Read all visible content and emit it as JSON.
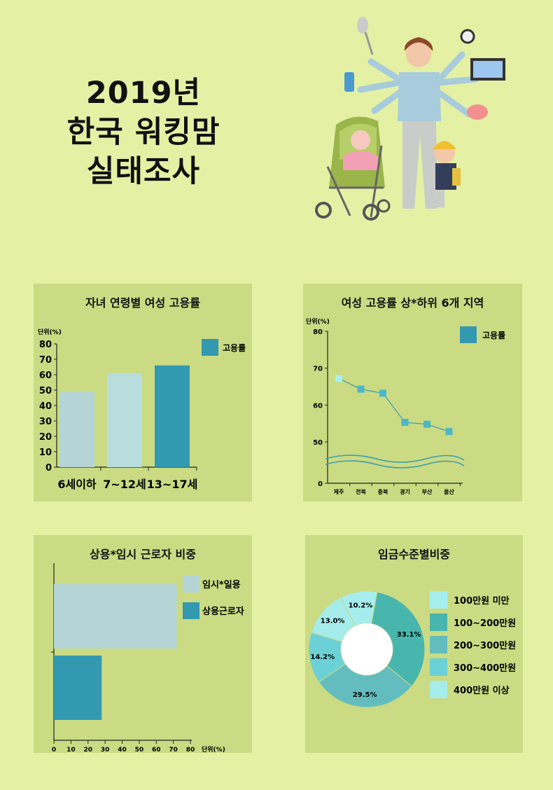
{
  "header": {
    "title_line1": "2019년",
    "title_line2": "한국 워킹맘",
    "title_line3": "실태조사"
  },
  "colors": {
    "background": "#e4f0a4",
    "panel": "#cadb83",
    "teal": "#3399b0",
    "light_blue": "#b5d4d6",
    "pale_blue": "#b9dcdc"
  },
  "illustration": {
    "name": "working-mom-multitasking-icon"
  },
  "charts": [
    {
      "type": "bar",
      "title": "자녀 연령별 여성 고용률",
      "unit_label": "단위(%)",
      "categories": [
        "6세이하",
        "7~12세",
        "13~17세"
      ],
      "values": [
        49,
        61,
        66
      ],
      "colors": [
        "#b5d4d6",
        "#b9dcdc",
        "#3399b0"
      ],
      "yticks": [
        0,
        10,
        20,
        30,
        40,
        50,
        60,
        70,
        80
      ],
      "ylim": [
        0,
        80
      ],
      "legend": [
        "고용률"
      ],
      "legend_position": "top-right"
    },
    {
      "type": "line",
      "title": "여성 고용률 상*하위 6개 지역",
      "unit_label": "단위(%)",
      "categories": [
        "제주",
        "전북",
        "충북",
        "경기",
        "부산",
        "울산"
      ],
      "values": [
        67.2,
        64.3,
        63.2,
        55.3,
        54.8,
        52.8
      ],
      "yticks": [
        0,
        50,
        60,
        70,
        80
      ],
      "axis_break": [
        0,
        45
      ],
      "legend": [
        "고용률"
      ],
      "legend_position": "top-right"
    },
    {
      "type": "bar",
      "orientation": "horizontal",
      "title": "상용*임시 근로자 비중",
      "unit_label": "단위(%)",
      "categories": [
        "임시*일용",
        "상용근로자"
      ],
      "values": [
        72,
        28
      ],
      "colors": [
        "#b5d4d6",
        "#3399b0"
      ],
      "xticks": [
        0,
        10,
        20,
        30,
        40,
        50,
        60,
        70,
        80
      ],
      "xlim": [
        0,
        80
      ],
      "legend": [
        "임시*일용",
        "상용근로자"
      ],
      "legend_position": "top-right"
    },
    {
      "type": "pie",
      "donut": true,
      "title": "임금수준별비중",
      "labels": [
        "100만원 미만",
        "100~200만원",
        "200~300만원",
        "300~400만원",
        "400만원 이상"
      ],
      "values": [
        10.2,
        33.1,
        29.5,
        14.2,
        13.0
      ],
      "value_labels": [
        "10.2%",
        "33.1%",
        "29.5%",
        "14.2%",
        "13.0%"
      ],
      "colors": [
        "#a6eeee",
        "#49b6ad",
        "#63bdbf",
        "#6cd1d6",
        "#a5ecea"
      ],
      "legend_position": "right"
    }
  ]
}
